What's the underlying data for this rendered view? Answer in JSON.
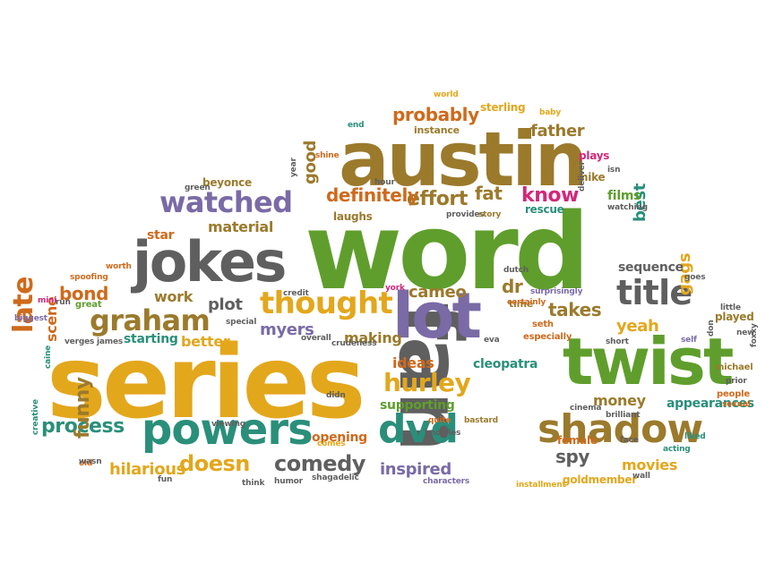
{
  "colors": {
    "gray": "#5f5f5f",
    "gold": "#e3a71c",
    "green": "#5f9e2c",
    "brown": "#9b7a2c",
    "purple": "#7a6aa6",
    "teal": "#2a8f7a",
    "orange": "#cf6a1c",
    "pink": "#d2287a"
  },
  "words": [
    "word",
    "series",
    "fan",
    "austin",
    "twist",
    "lot",
    "jokes",
    "powers",
    "shadow",
    "dvd",
    "title",
    "watched",
    "thought",
    "graham",
    "late",
    "hurley",
    "comedy",
    "doesn",
    "process",
    "funny",
    "hilarious",
    "inspired",
    "spy",
    "movies",
    "gags",
    "yeah",
    "takes",
    "dr",
    "cameo",
    "probably",
    "father",
    "know",
    "fat",
    "effort",
    "definitely",
    "material",
    "star",
    "bond",
    "work",
    "plot",
    "myers",
    "making",
    "ideas",
    "cleopatra",
    "supporting",
    "money",
    "appearances",
    "best",
    "sequence",
    "better",
    "starting",
    "scene",
    "good",
    "beyonce",
    "films",
    "plays",
    "mike",
    "sterling",
    "instance",
    "laughs",
    "rescue",
    "opening",
    "female",
    "goldmember",
    "played",
    "great",
    "world",
    "baby",
    "end",
    "shine",
    "green",
    "time",
    "seth",
    "especially",
    "michael",
    "people",
    "sexual",
    "prior",
    "little",
    "new",
    "goes",
    "self",
    "liked",
    "acting",
    "face",
    "wall",
    "installment",
    "characters",
    "shagadelic",
    "humor",
    "think",
    "fun",
    "old",
    "creative",
    "caine",
    "run",
    "biggest",
    "mini",
    "spoofing",
    "worth",
    "verges",
    "james",
    "special",
    "credit",
    "york",
    "dutch",
    "certainly",
    "surprisingly",
    "overall",
    "crudeness",
    "eva",
    "short",
    "viewing",
    "cinema",
    "brilliant",
    "bastard",
    "quite",
    "knowles",
    "comes",
    "wasn",
    "don",
    "provides",
    "story",
    "hour",
    "deliver",
    "watching",
    "isn",
    "year",
    "foxxy",
    "didn"
  ]
}
